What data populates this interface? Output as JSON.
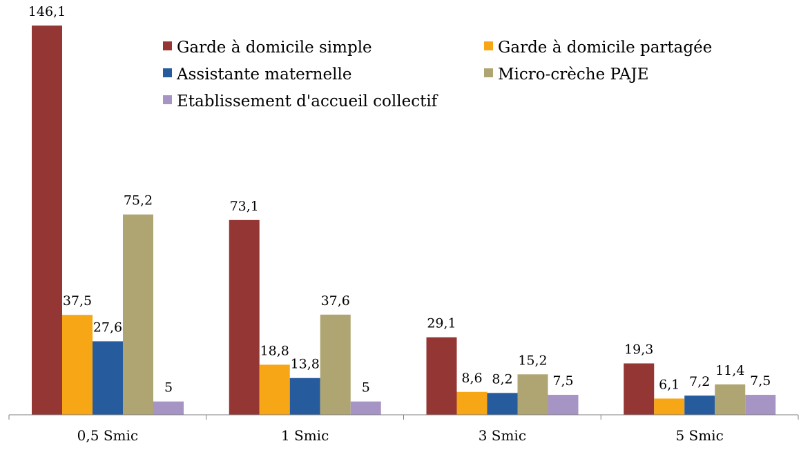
{
  "chart_data": {
    "type": "bar",
    "categories": [
      "0,5 Smic",
      "1 Smic",
      "3 Smic",
      "5 Smic"
    ],
    "series": [
      {
        "name": "Garde à domicile simple",
        "color": "#943634",
        "values": [
          146.1,
          73.1,
          29.1,
          19.3
        ],
        "labels": [
          "146,1",
          "73,1",
          "29,1",
          "19,3"
        ]
      },
      {
        "name": "Garde à domicile partagée",
        "color": "#F7A616",
        "values": [
          37.5,
          18.8,
          8.6,
          6.1
        ],
        "labels": [
          "37,5",
          "18,8",
          "8,6",
          "6,1"
        ]
      },
      {
        "name": "Assistante maternelle",
        "color": "#265C9E",
        "values": [
          27.6,
          13.8,
          8.2,
          7.2
        ],
        "labels": [
          "27,6",
          "13,8",
          "8,2",
          "7,2"
        ]
      },
      {
        "name": "Micro-crèche PAJE",
        "color": "#AFA572",
        "values": [
          75.2,
          37.6,
          15.2,
          11.4
        ],
        "labels": [
          "75,2",
          "37,6",
          "15,2",
          "11,4"
        ]
      },
      {
        "name": "Etablissement d'accueil collectif",
        "color": "#A694C4",
        "values": [
          5,
          5,
          7.5,
          7.5
        ],
        "labels": [
          "5",
          "5",
          "7,5",
          "7,5"
        ]
      }
    ],
    "title": "",
    "xlabel": "",
    "ylabel": "",
    "ylim": [
      0,
      150
    ],
    "grid": false,
    "legend_position": "top-right"
  }
}
